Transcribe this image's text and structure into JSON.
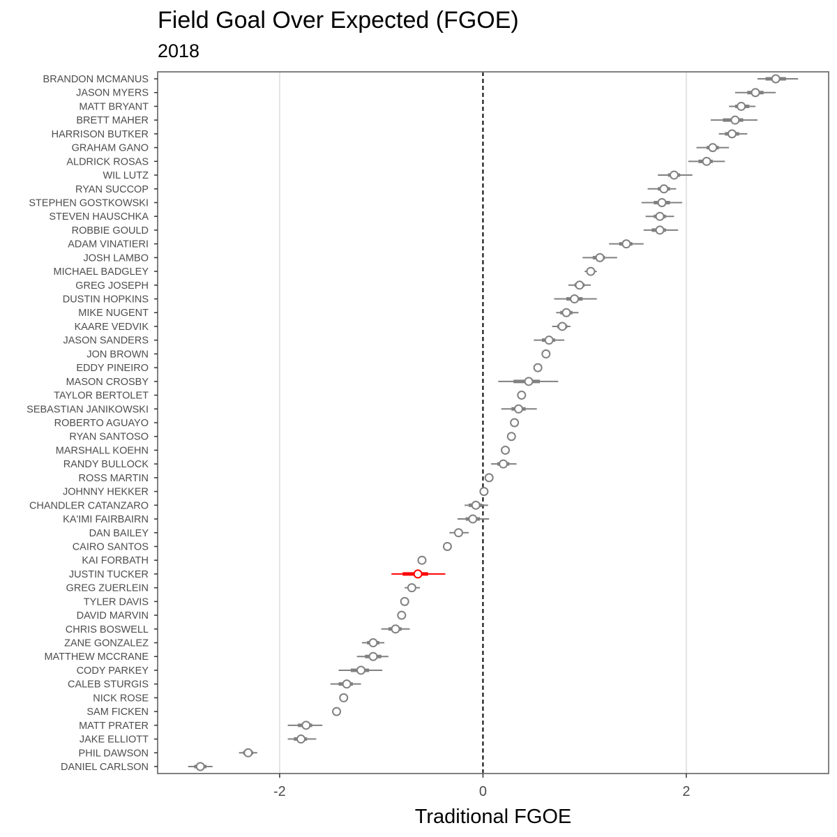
{
  "chart_data": {
    "type": "scatter",
    "title": "Field Goal Over Expected (FGOE)",
    "subtitle": "2018",
    "xlabel": "Traditional FGOE",
    "ylabel": "",
    "xlim": [
      -3.2,
      3.4
    ],
    "xticks": [
      -2,
      0,
      2
    ],
    "xtick_labels": [
      "-2",
      "0",
      "2"
    ],
    "reference_line": 0,
    "grid": "vertical major lines only",
    "colors": {
      "default": "#808080",
      "highlight": "#ff0000"
    },
    "kickers": [
      {
        "name": "BRANDON MCMANUS",
        "value": 2.88,
        "inner": [
          2.78,
          2.98
        ],
        "outer": [
          2.7,
          3.1
        ]
      },
      {
        "name": "JASON MYERS",
        "value": 2.68,
        "inner": [
          2.6,
          2.76
        ],
        "outer": [
          2.48,
          2.88
        ]
      },
      {
        "name": "MATT BRYANT",
        "value": 2.54,
        "inner": [
          2.48,
          2.62
        ],
        "outer": [
          2.42,
          2.68
        ]
      },
      {
        "name": "BRETT MAHER",
        "value": 2.48,
        "inner": [
          2.36,
          2.56
        ],
        "outer": [
          2.24,
          2.7
        ]
      },
      {
        "name": "HARRISON BUTKER",
        "value": 2.45,
        "inner": [
          2.38,
          2.52
        ],
        "outer": [
          2.32,
          2.6
        ]
      },
      {
        "name": "GRAHAM GANO",
        "value": 2.26,
        "inner": [
          2.2,
          2.32
        ],
        "outer": [
          2.1,
          2.42
        ]
      },
      {
        "name": "ALDRICK ROSAS",
        "value": 2.2,
        "inner": [
          2.12,
          2.26
        ],
        "outer": [
          2.02,
          2.38
        ]
      },
      {
        "name": "WIL LUTZ",
        "value": 1.88,
        "inner": [
          1.82,
          1.94
        ],
        "outer": [
          1.72,
          2.06
        ]
      },
      {
        "name": "RYAN SUCCOP",
        "value": 1.78,
        "inner": [
          1.72,
          1.84
        ],
        "outer": [
          1.62,
          1.9
        ]
      },
      {
        "name": "STEPHEN GOSTKOWSKI",
        "value": 1.76,
        "inner": [
          1.68,
          1.84
        ],
        "outer": [
          1.56,
          1.96
        ]
      },
      {
        "name": "STEVEN HAUSCHKA",
        "value": 1.74,
        "inner": [
          1.68,
          1.8
        ],
        "outer": [
          1.6,
          1.88
        ]
      },
      {
        "name": "ROBBIE GOULD",
        "value": 1.74,
        "inner": [
          1.66,
          1.8
        ],
        "outer": [
          1.58,
          1.92
        ]
      },
      {
        "name": "ADAM VINATIERI",
        "value": 1.41,
        "inner": [
          1.34,
          1.47
        ],
        "outer": [
          1.24,
          1.58
        ]
      },
      {
        "name": "JOSH LAMBO",
        "value": 1.15,
        "inner": [
          1.08,
          1.2
        ],
        "outer": [
          0.98,
          1.32
        ]
      },
      {
        "name": "MICHAEL BADGLEY",
        "value": 1.06,
        "inner": [
          1.02,
          1.1
        ],
        "outer": [
          1.0,
          1.12
        ]
      },
      {
        "name": "GREG JOSEPH",
        "value": 0.95,
        "inner": [
          0.9,
          1.0
        ],
        "outer": [
          0.84,
          1.06
        ]
      },
      {
        "name": "DUSTIN HOPKINS",
        "value": 0.9,
        "inner": [
          0.82,
          0.98
        ],
        "outer": [
          0.7,
          1.12
        ]
      },
      {
        "name": "MIKE NUGENT",
        "value": 0.82,
        "inner": [
          0.76,
          0.88
        ],
        "outer": [
          0.72,
          0.94
        ]
      },
      {
        "name": "KAARE VEDVIK",
        "value": 0.78,
        "inner": [
          0.73,
          0.83
        ],
        "outer": [
          0.68,
          0.86
        ]
      },
      {
        "name": "JASON SANDERS",
        "value": 0.65,
        "inner": [
          0.58,
          0.71
        ],
        "outer": [
          0.5,
          0.8
        ]
      },
      {
        "name": "JON BROWN",
        "value": 0.62,
        "inner": [
          0.6,
          0.64
        ],
        "outer": [
          0.59,
          0.65
        ]
      },
      {
        "name": "EDDY PINEIRO",
        "value": 0.54,
        "inner": [
          0.52,
          0.56
        ],
        "outer": [
          0.51,
          0.57
        ]
      },
      {
        "name": "MASON CROSBY",
        "value": 0.45,
        "inner": [
          0.3,
          0.56
        ],
        "outer": [
          0.15,
          0.74
        ]
      },
      {
        "name": "TAYLOR BERTOLET",
        "value": 0.38,
        "inner": [
          0.36,
          0.4
        ],
        "outer": [
          0.35,
          0.41
        ]
      },
      {
        "name": "SEBASTIAN JANIKOWSKI",
        "value": 0.35,
        "inner": [
          0.28,
          0.42
        ],
        "outer": [
          0.18,
          0.53
        ]
      },
      {
        "name": "ROBERTO AGUAYO",
        "value": 0.31,
        "inner": [
          0.29,
          0.33
        ],
        "outer": [
          0.28,
          0.34
        ]
      },
      {
        "name": "RYAN SANTOSO",
        "value": 0.28,
        "inner": [
          0.26,
          0.3
        ],
        "outer": [
          0.25,
          0.31
        ]
      },
      {
        "name": "MARSHALL KOEHN",
        "value": 0.22,
        "inner": [
          0.2,
          0.24
        ],
        "outer": [
          0.19,
          0.25
        ]
      },
      {
        "name": "RANDY BULLOCK",
        "value": 0.2,
        "inner": [
          0.14,
          0.26
        ],
        "outer": [
          0.08,
          0.33
        ]
      },
      {
        "name": "ROSS MARTIN",
        "value": 0.06,
        "inner": [
          0.04,
          0.08
        ],
        "outer": [
          0.03,
          0.09
        ]
      },
      {
        "name": "JOHNNY HEKKER",
        "value": 0.01,
        "inner": [
          -0.01,
          0.03
        ],
        "outer": [
          -0.02,
          0.04
        ]
      },
      {
        "name": "CHANDLER CATANZARO",
        "value": -0.07,
        "inner": [
          -0.14,
          -0.01
        ],
        "outer": [
          -0.18,
          0.05
        ]
      },
      {
        "name": "KA'IMI FAIRBAIRN",
        "value": -0.1,
        "inner": [
          -0.17,
          -0.03
        ],
        "outer": [
          -0.25,
          0.06
        ]
      },
      {
        "name": "DAN BAILEY",
        "value": -0.24,
        "inner": [
          -0.28,
          -0.2
        ],
        "outer": [
          -0.33,
          -0.14
        ]
      },
      {
        "name": "CAIRO SANTOS",
        "value": -0.35,
        "inner": [
          -0.37,
          -0.33
        ],
        "outer": [
          -0.38,
          -0.32
        ]
      },
      {
        "name": "KAI FORBATH",
        "value": -0.6,
        "inner": [
          -0.62,
          -0.58
        ],
        "outer": [
          -0.63,
          -0.57
        ]
      },
      {
        "name": "JUSTIN TUCKER",
        "value": -0.64,
        "inner": [
          -0.79,
          -0.54
        ],
        "outer": [
          -0.9,
          -0.37
        ],
        "highlight": true
      },
      {
        "name": "GREG ZUERLEIN",
        "value": -0.7,
        "inner": [
          -0.74,
          -0.66
        ],
        "outer": [
          -0.77,
          -0.62
        ]
      },
      {
        "name": "TYLER DAVIS",
        "value": -0.77,
        "inner": [
          -0.79,
          -0.75
        ],
        "outer": [
          -0.8,
          -0.74
        ]
      },
      {
        "name": "DAVID MARVIN",
        "value": -0.8,
        "inner": [
          -0.82,
          -0.78
        ],
        "outer": [
          -0.83,
          -0.77
        ]
      },
      {
        "name": "CHRIS BOSWELL",
        "value": -0.86,
        "inner": [
          -0.93,
          -0.8
        ],
        "outer": [
          -1.0,
          -0.72
        ]
      },
      {
        "name": "ZANE GONZALEZ",
        "value": -1.08,
        "inner": [
          -1.14,
          -1.02
        ],
        "outer": [
          -1.19,
          -0.97
        ]
      },
      {
        "name": "MATTHEW MCCRANE",
        "value": -1.08,
        "inner": [
          -1.16,
          -1.0
        ],
        "outer": [
          -1.24,
          -0.93
        ]
      },
      {
        "name": "CODY PARKEY",
        "value": -1.2,
        "inner": [
          -1.3,
          -1.12
        ],
        "outer": [
          -1.42,
          -0.99
        ]
      },
      {
        "name": "CALEB STURGIS",
        "value": -1.34,
        "inner": [
          -1.42,
          -1.28
        ],
        "outer": [
          -1.5,
          -1.2
        ]
      },
      {
        "name": "NICK ROSE",
        "value": -1.37,
        "inner": [
          -1.39,
          -1.35
        ],
        "outer": [
          -1.4,
          -1.34
        ]
      },
      {
        "name": "SAM FICKEN",
        "value": -1.44,
        "inner": [
          -1.46,
          -1.42
        ],
        "outer": [
          -1.47,
          -1.41
        ]
      },
      {
        "name": "MATT PRATER",
        "value": -1.74,
        "inner": [
          -1.82,
          -1.68
        ],
        "outer": [
          -1.92,
          -1.58
        ]
      },
      {
        "name": "JAKE ELLIOTT",
        "value": -1.79,
        "inner": [
          -1.86,
          -1.73
        ],
        "outer": [
          -1.92,
          -1.64
        ]
      },
      {
        "name": "PHIL DAWSON",
        "value": -2.31,
        "inner": [
          -2.36,
          -2.26
        ],
        "outer": [
          -2.4,
          -2.22
        ]
      },
      {
        "name": "DANIEL CARLSON",
        "value": -2.78,
        "inner": [
          -2.84,
          -2.72
        ],
        "outer": [
          -2.9,
          -2.66
        ]
      }
    ]
  }
}
